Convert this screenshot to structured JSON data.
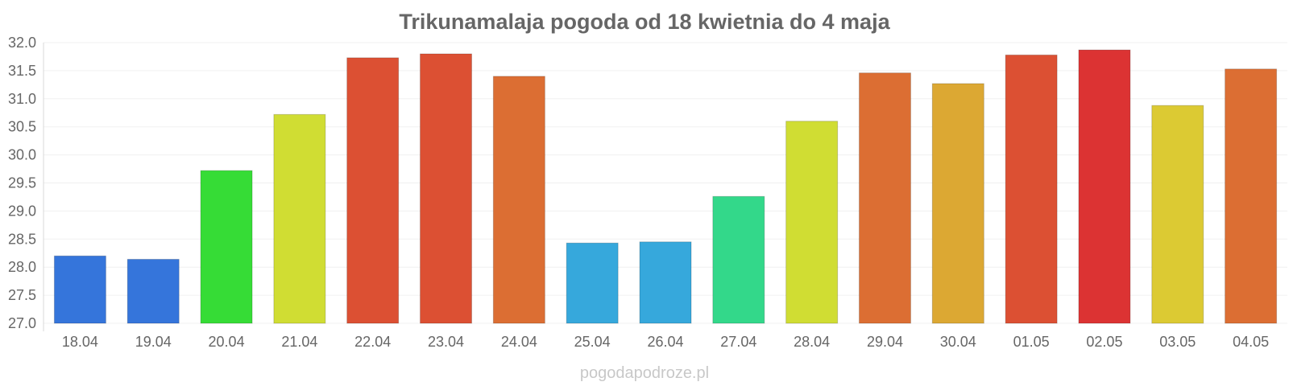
{
  "chart_data": {
    "type": "bar",
    "title": "Trikunamalaja pogoda od 18 kwietnia do 4 maja",
    "xlabel": "",
    "ylabel": "",
    "ylim": [
      27.0,
      32.0
    ],
    "y_ticks": [
      "27.0",
      "27.5",
      "28.0",
      "28.5",
      "29.0",
      "29.5",
      "30.0",
      "30.5",
      "31.0",
      "31.5",
      "32.0"
    ],
    "grid": true,
    "legend": "none",
    "categories": [
      "18.04",
      "19.04",
      "20.04",
      "21.04",
      "22.04",
      "23.04",
      "24.04",
      "25.04",
      "26.04",
      "27.04",
      "28.04",
      "29.04",
      "30.04",
      "01.05",
      "02.05",
      "03.05",
      "04.05"
    ],
    "values": [
      28.2,
      28.14,
      29.72,
      30.72,
      31.73,
      31.8,
      31.4,
      28.43,
      28.45,
      29.26,
      30.6,
      31.46,
      31.27,
      31.78,
      31.87,
      30.88,
      31.53
    ],
    "colors": [
      "#3575db",
      "#3575db",
      "#36dc36",
      "#d0dd33",
      "#dc5033",
      "#dc5033",
      "#dc6e33",
      "#36a8dc",
      "#36a8dc",
      "#33d88a",
      "#d0dd33",
      "#dc6e33",
      "#dca833",
      "#dc5033",
      "#dc3333",
      "#dcca33",
      "#dc6e33"
    ]
  },
  "watermark": "pogodapodroze.pl"
}
